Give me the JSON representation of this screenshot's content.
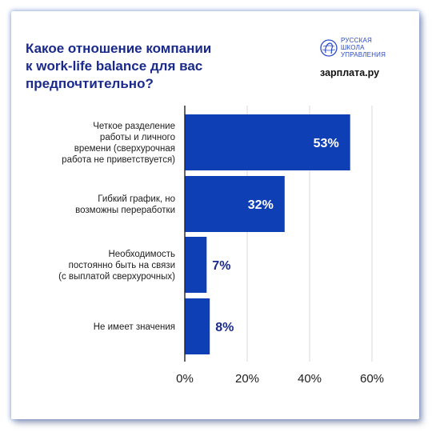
{
  "title_lines": [
    "Какое отношение компании",
    "к work-life balance для вас",
    "предпочтительно?"
  ],
  "brand": {
    "school_lines": [
      "РУССКАЯ",
      "ШКОЛА",
      "УПРАВЛЕНИЯ"
    ],
    "zp_first": "з",
    "zp_rest": "арплата.ру",
    "colors": {
      "navy": "#1a2a8c",
      "blue": "#0f3fb5",
      "yellow": "#ffd22e"
    },
    "school_icon": "globe-head-icon"
  },
  "chart_data": {
    "type": "bar",
    "orientation": "horizontal",
    "title": "Какое отношение компании к work-life balance для вас предпочтительно?",
    "categories": [
      [
        "Четкое разделение",
        "работы и личного",
        "времени (сверхурочная",
        "работа не приветствуется)"
      ],
      [
        "Гибкий график, но",
        "возможны переработки"
      ],
      [
        "Необходимость",
        "постоянно быть на связи",
        "(с выплатой сверхурочных)"
      ],
      [
        "Не имеет значения"
      ]
    ],
    "values": [
      53,
      32,
      7,
      8
    ],
    "value_labels": [
      "53%",
      "32%",
      "7%",
      "8%"
    ],
    "xlim": [
      0,
      60
    ],
    "xticks": [
      0,
      20,
      40,
      60
    ],
    "xtick_labels": [
      "0%",
      "20%",
      "40%",
      "60%"
    ],
    "grid": "vertical",
    "bar_color": "#0f3fb5",
    "inside_label_color": "#ffffff",
    "outside_label_color": "#1a2a8c"
  }
}
